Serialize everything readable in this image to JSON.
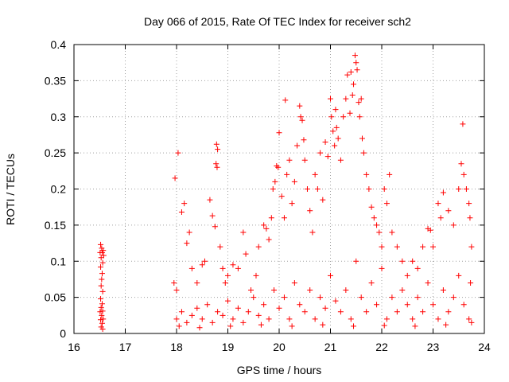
{
  "chart_data": {
    "type": "scatter",
    "title": "Day 066 of 2015, Rate Of TEC Index for receiver sch2",
    "xlabel": "GPS time / hours",
    "ylabel": "ROTI / TECUs",
    "xlim": [
      16,
      24
    ],
    "ylim": [
      0,
      0.4
    ],
    "x_ticks": [
      16,
      17,
      18,
      19,
      20,
      21,
      22,
      23,
      24
    ],
    "y_ticks": [
      0,
      0.05,
      0.1,
      0.15,
      0.2,
      0.25,
      0.3,
      0.35,
      0.4
    ],
    "x_tick_labels": [
      "16",
      "17",
      "18",
      "19",
      "20",
      "21",
      "22",
      "23",
      "24"
    ],
    "y_tick_labels": [
      "0",
      "0.05",
      "0.1",
      "0.15",
      "0.2",
      "0.25",
      "0.3",
      "0.35",
      "0.4"
    ],
    "grid": true,
    "marker": "+",
    "marker_color": "#ff0000",
    "series": [
      {
        "name": "ROTI",
        "points": [
          [
            16.52,
            0.123
          ],
          [
            16.54,
            0.118
          ],
          [
            16.55,
            0.112
          ],
          [
            16.53,
            0.105
          ],
          [
            16.56,
            0.098
          ],
          [
            16.52,
            0.092
          ],
          [
            16.55,
            0.083
          ],
          [
            16.54,
            0.075
          ],
          [
            16.53,
            0.066
          ],
          [
            16.56,
            0.058
          ],
          [
            16.52,
            0.048
          ],
          [
            16.55,
            0.041
          ],
          [
            16.53,
            0.036
          ],
          [
            16.56,
            0.031
          ],
          [
            16.54,
            0.025
          ],
          [
            16.52,
            0.019
          ],
          [
            16.55,
            0.014
          ],
          [
            16.53,
            0.009
          ],
          [
            16.56,
            0.006
          ],
          [
            16.57,
            0.115
          ],
          [
            16.58,
            0.108
          ],
          [
            16.51,
            0.112
          ],
          [
            16.57,
            0.02
          ],
          [
            16.51,
            0.03
          ],
          [
            18.03,
            0.25
          ],
          [
            17.97,
            0.215
          ],
          [
            18.1,
            0.168
          ],
          [
            18.15,
            0.18
          ],
          [
            18.2,
            0.125
          ],
          [
            18.25,
            0.14
          ],
          [
            17.95,
            0.07
          ],
          [
            18.0,
            0.06
          ],
          [
            18.3,
            0.09
          ],
          [
            18.4,
            0.07
          ],
          [
            18.5,
            0.095
          ],
          [
            18.55,
            0.1
          ],
          [
            18.65,
            0.185
          ],
          [
            18.7,
            0.163
          ],
          [
            18.75,
            0.148
          ],
          [
            18.78,
            0.262
          ],
          [
            18.8,
            0.255
          ],
          [
            18.77,
            0.235
          ],
          [
            18.79,
            0.23
          ],
          [
            18.85,
            0.12
          ],
          [
            18.9,
            0.09
          ],
          [
            18.95,
            0.07
          ],
          [
            19.0,
            0.08
          ],
          [
            19.1,
            0.095
          ],
          [
            19.2,
            0.09
          ],
          [
            19.3,
            0.14
          ],
          [
            19.35,
            0.11
          ],
          [
            19.45,
            0.06
          ],
          [
            19.55,
            0.08
          ],
          [
            19.6,
            0.12
          ],
          [
            19.7,
            0.15
          ],
          [
            19.75,
            0.145
          ],
          [
            19.8,
            0.13
          ],
          [
            19.85,
            0.16
          ],
          [
            19.88,
            0.2
          ],
          [
            19.92,
            0.21
          ],
          [
            19.95,
            0.232
          ],
          [
            19.98,
            0.23
          ],
          [
            20.0,
            0.278
          ],
          [
            20.05,
            0.19
          ],
          [
            20.1,
            0.16
          ],
          [
            20.12,
            0.323
          ],
          [
            20.15,
            0.22
          ],
          [
            20.2,
            0.24
          ],
          [
            20.25,
            0.18
          ],
          [
            20.3,
            0.21
          ],
          [
            20.35,
            0.26
          ],
          [
            20.4,
            0.315
          ],
          [
            20.42,
            0.3
          ],
          [
            20.45,
            0.295
          ],
          [
            20.48,
            0.268
          ],
          [
            20.5,
            0.24
          ],
          [
            20.55,
            0.2
          ],
          [
            20.6,
            0.17
          ],
          [
            20.65,
            0.14
          ],
          [
            20.7,
            0.22
          ],
          [
            20.75,
            0.2
          ],
          [
            20.8,
            0.25
          ],
          [
            20.85,
            0.185
          ],
          [
            20.9,
            0.265
          ],
          [
            20.95,
            0.245
          ],
          [
            21.0,
            0.325
          ],
          [
            21.02,
            0.3
          ],
          [
            21.05,
            0.28
          ],
          [
            21.08,
            0.26
          ],
          [
            21.1,
            0.31
          ],
          [
            21.12,
            0.285
          ],
          [
            21.15,
            0.27
          ],
          [
            21.2,
            0.24
          ],
          [
            21.25,
            0.3
          ],
          [
            21.3,
            0.325
          ],
          [
            21.33,
            0.358
          ],
          [
            21.38,
            0.305
          ],
          [
            21.4,
            0.362
          ],
          [
            21.43,
            0.33
          ],
          [
            21.45,
            0.345
          ],
          [
            21.48,
            0.385
          ],
          [
            21.5,
            0.375
          ],
          [
            21.52,
            0.365
          ],
          [
            21.55,
            0.32
          ],
          [
            21.57,
            0.3
          ],
          [
            21.6,
            0.325
          ],
          [
            21.62,
            0.27
          ],
          [
            21.65,
            0.25
          ],
          [
            21.7,
            0.22
          ],
          [
            21.75,
            0.2
          ],
          [
            21.8,
            0.175
          ],
          [
            21.85,
            0.16
          ],
          [
            21.9,
            0.15
          ],
          [
            21.95,
            0.14
          ],
          [
            22.0,
            0.12
          ],
          [
            22.05,
            0.2
          ],
          [
            22.1,
            0.18
          ],
          [
            22.15,
            0.22
          ],
          [
            22.2,
            0.14
          ],
          [
            22.3,
            0.12
          ],
          [
            22.4,
            0.1
          ],
          [
            22.5,
            0.08
          ],
          [
            22.6,
            0.1
          ],
          [
            22.7,
            0.09
          ],
          [
            22.8,
            0.12
          ],
          [
            22.9,
            0.145
          ],
          [
            22.95,
            0.143
          ],
          [
            23.0,
            0.12
          ],
          [
            23.1,
            0.18
          ],
          [
            23.15,
            0.16
          ],
          [
            23.2,
            0.195
          ],
          [
            23.3,
            0.17
          ],
          [
            23.4,
            0.15
          ],
          [
            23.5,
            0.2
          ],
          [
            23.55,
            0.235
          ],
          [
            23.58,
            0.29
          ],
          [
            23.6,
            0.22
          ],
          [
            23.65,
            0.2
          ],
          [
            23.7,
            0.18
          ],
          [
            23.72,
            0.16
          ],
          [
            23.75,
            0.12
          ],
          [
            23.73,
            0.07
          ],
          [
            18.0,
            0.02
          ],
          [
            18.1,
            0.03
          ],
          [
            18.2,
            0.015
          ],
          [
            18.3,
            0.025
          ],
          [
            18.4,
            0.035
          ],
          [
            18.5,
            0.02
          ],
          [
            18.6,
            0.04
          ],
          [
            18.7,
            0.015
          ],
          [
            18.8,
            0.03
          ],
          [
            18.9,
            0.025
          ],
          [
            19.0,
            0.045
          ],
          [
            19.1,
            0.02
          ],
          [
            19.2,
            0.035
          ],
          [
            19.3,
            0.015
          ],
          [
            19.4,
            0.03
          ],
          [
            19.5,
            0.05
          ],
          [
            19.6,
            0.025
          ],
          [
            19.7,
            0.04
          ],
          [
            19.8,
            0.02
          ],
          [
            19.9,
            0.06
          ],
          [
            20.0,
            0.035
          ],
          [
            20.1,
            0.05
          ],
          [
            20.2,
            0.02
          ],
          [
            20.3,
            0.07
          ],
          [
            20.4,
            0.04
          ],
          [
            20.5,
            0.03
          ],
          [
            20.6,
            0.06
          ],
          [
            20.7,
            0.02
          ],
          [
            20.8,
            0.05
          ],
          [
            20.9,
            0.035
          ],
          [
            21.0,
            0.08
          ],
          [
            21.1,
            0.045
          ],
          [
            21.2,
            0.03
          ],
          [
            21.3,
            0.06
          ],
          [
            21.4,
            0.02
          ],
          [
            21.5,
            0.1
          ],
          [
            21.6,
            0.05
          ],
          [
            21.7,
            0.03
          ],
          [
            21.8,
            0.07
          ],
          [
            21.9,
            0.04
          ],
          [
            22.0,
            0.09
          ],
          [
            22.1,
            0.02
          ],
          [
            22.2,
            0.05
          ],
          [
            22.3,
            0.03
          ],
          [
            22.4,
            0.06
          ],
          [
            22.5,
            0.04
          ],
          [
            22.6,
            0.02
          ],
          [
            22.7,
            0.05
          ],
          [
            22.8,
            0.03
          ],
          [
            22.9,
            0.07
          ],
          [
            23.0,
            0.04
          ],
          [
            23.1,
            0.02
          ],
          [
            23.2,
            0.06
          ],
          [
            23.3,
            0.03
          ],
          [
            23.4,
            0.05
          ],
          [
            23.5,
            0.08
          ],
          [
            23.6,
            0.04
          ],
          [
            23.7,
            0.02
          ],
          [
            23.75,
            0.015
          ],
          [
            18.05,
            0.01
          ],
          [
            18.45,
            0.008
          ],
          [
            19.05,
            0.01
          ],
          [
            19.65,
            0.012
          ],
          [
            20.25,
            0.01
          ],
          [
            20.85,
            0.012
          ],
          [
            21.45,
            0.01
          ],
          [
            22.05,
            0.011
          ],
          [
            22.65,
            0.01
          ],
          [
            23.25,
            0.012
          ]
        ]
      }
    ]
  }
}
